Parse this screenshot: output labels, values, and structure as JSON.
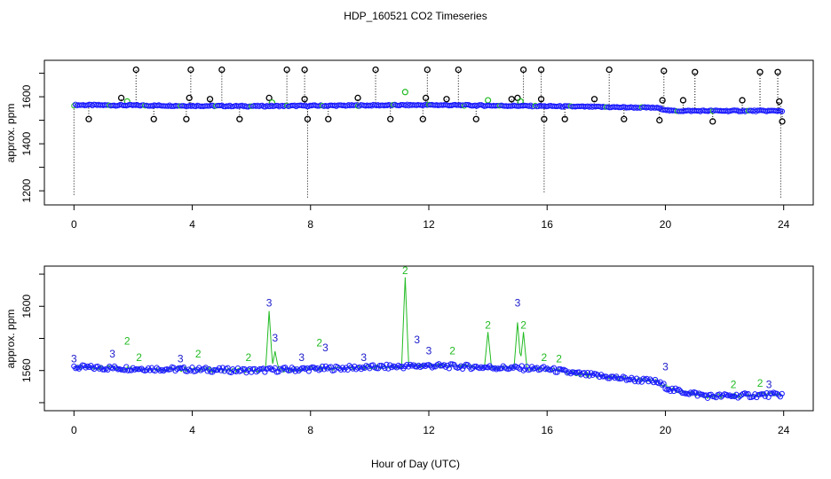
{
  "figure": {
    "title": "HDP_160521  CO2 Timeseries",
    "xlabel": "Hour of Day (UTC)"
  },
  "chart_data": [
    {
      "type": "scatter",
      "ylabel": "approx. ppm",
      "xlim": [
        -1,
        25
      ],
      "ylim": [
        1140,
        1755
      ],
      "xticks": [
        0,
        4,
        8,
        12,
        16,
        20,
        24
      ],
      "yticks": [
        1200,
        1400,
        1600
      ],
      "baseline": [
        [
          0,
          1565
        ],
        [
          6,
          1560
        ],
        [
          12,
          1565
        ],
        [
          16,
          1560
        ],
        [
          19.7,
          1553
        ],
        [
          20.2,
          1540
        ],
        [
          24,
          1540
        ]
      ],
      "spikes_high": [
        [
          0.5,
          1505
        ],
        [
          1.6,
          1595
        ],
        [
          2.1,
          1715
        ],
        [
          2.7,
          1505
        ],
        [
          3.8,
          1505
        ],
        [
          3.9,
          1595
        ],
        [
          3.95,
          1715
        ],
        [
          4.6,
          1590
        ],
        [
          5.0,
          1715
        ],
        [
          5.6,
          1505
        ],
        [
          6.6,
          1595
        ],
        [
          7.2,
          1715
        ],
        [
          7.8,
          1715
        ],
        [
          7.8,
          1590
        ],
        [
          7.9,
          1505
        ],
        [
          8.6,
          1505
        ],
        [
          9.6,
          1595
        ],
        [
          10.2,
          1715
        ],
        [
          10.7,
          1505
        ],
        [
          11.8,
          1505
        ],
        [
          11.9,
          1595
        ],
        [
          11.95,
          1715
        ],
        [
          12.6,
          1590
        ],
        [
          13.0,
          1715
        ],
        [
          13.6,
          1505
        ],
        [
          14.8,
          1590
        ],
        [
          15.0,
          1595
        ],
        [
          15.2,
          1715
        ],
        [
          15.8,
          1715
        ],
        [
          15.8,
          1590
        ],
        [
          15.9,
          1505
        ],
        [
          16.6,
          1505
        ],
        [
          17.6,
          1590
        ],
        [
          18.1,
          1715
        ],
        [
          18.6,
          1505
        ],
        [
          19.8,
          1500
        ],
        [
          19.9,
          1585
        ],
        [
          19.95,
          1710
        ],
        [
          20.6,
          1585
        ],
        [
          21.0,
          1705
        ],
        [
          21.6,
          1495
        ],
        [
          22.6,
          1585
        ],
        [
          23.2,
          1705
        ],
        [
          23.8,
          1705
        ],
        [
          23.85,
          1580
        ],
        [
          23.95,
          1495
        ]
      ],
      "spikes_green": [
        [
          1.8,
          1580
        ],
        [
          6.7,
          1575
        ],
        [
          11.2,
          1620
        ],
        [
          14.0,
          1585
        ],
        [
          15.1,
          1580
        ]
      ],
      "drops": [
        [
          0,
          1180
        ],
        [
          7.9,
          1170
        ],
        [
          15.9,
          1190
        ],
        [
          23.9,
          1165
        ]
      ]
    },
    {
      "type": "line",
      "ylabel": "approx. ppm",
      "xlim": [
        -1,
        25
      ],
      "ylim": [
        1535,
        1625
      ],
      "xticks": [
        0,
        4,
        8,
        12,
        16,
        20,
        24
      ],
      "yticks": [
        1560,
        1600
      ],
      "baseline": [
        [
          0,
          1562
        ],
        [
          3,
          1561
        ],
        [
          6,
          1560
        ],
        [
          8,
          1561
        ],
        [
          10,
          1562
        ],
        [
          12,
          1563
        ],
        [
          16,
          1561
        ],
        [
          17,
          1558
        ],
        [
          19.7,
          1553
        ],
        [
          20.2,
          1548
        ],
        [
          21.5,
          1544
        ],
        [
          24,
          1545
        ]
      ],
      "peaks": [
        [
          6.6,
          1597
        ],
        [
          6.8,
          1572
        ],
        [
          11.2,
          1618
        ],
        [
          14.0,
          1584
        ],
        [
          15.0,
          1590
        ],
        [
          15.2,
          1584
        ]
      ],
      "markers": [
        [
          0,
          1565,
          "3"
        ],
        [
          1.3,
          1568,
          "3"
        ],
        [
          1.8,
          1576,
          "2"
        ],
        [
          2.2,
          1566,
          "2"
        ],
        [
          3.6,
          1565,
          "3"
        ],
        [
          4.2,
          1568,
          "2"
        ],
        [
          5.9,
          1566,
          "2"
        ],
        [
          6.6,
          1600,
          "3"
        ],
        [
          6.8,
          1578,
          "3"
        ],
        [
          7.7,
          1566,
          "3"
        ],
        [
          8.3,
          1575,
          "2"
        ],
        [
          8.5,
          1572,
          "3"
        ],
        [
          9.8,
          1566,
          "3"
        ],
        [
          11.2,
          1620,
          "2"
        ],
        [
          11.6,
          1577,
          "3"
        ],
        [
          12.0,
          1570,
          "3"
        ],
        [
          12.8,
          1570,
          "2"
        ],
        [
          14.0,
          1586,
          "2"
        ],
        [
          15.0,
          1600,
          "3"
        ],
        [
          15.2,
          1586,
          "2"
        ],
        [
          15.9,
          1566,
          "2"
        ],
        [
          16.4,
          1565,
          "2"
        ],
        [
          20.0,
          1560,
          "3"
        ],
        [
          22.3,
          1549,
          "2"
        ],
        [
          23.2,
          1550,
          "2"
        ],
        [
          23.5,
          1549,
          "3"
        ]
      ]
    }
  ]
}
